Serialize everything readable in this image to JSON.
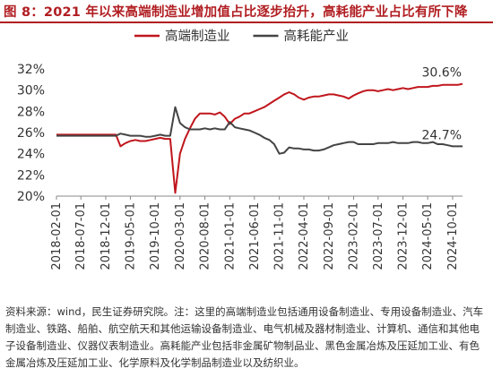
{
  "header": {
    "title": "图 8：2021 年以来高端制造业增加值占比逐步抬升，高耗能产业占比有所下降"
  },
  "footer": {
    "source_note": "资料来源：wind，民生证券研究院。注：这里的高端制造业包括通用设备制造业、专用设备制造业、汽车制造业、铁路、船舶、航空航天和其他运输设备制造业、电气机械及器材制造业、计算机、通信和其他电子设备制造业、仪器仪表制造业。高耗能产业包括非金属矿物制品业、黑色金属冶炼及压延加工业、有色金属冶炼及压延加工业、化学原料及化学制品制造业以及纺织业。"
  },
  "chart_data": {
    "type": "line",
    "title": "",
    "xlabel": "",
    "ylabel": "",
    "ylim": [
      20,
      32
    ],
    "yticks": [
      "20%",
      "22%",
      "24%",
      "26%",
      "28%",
      "30%",
      "32%"
    ],
    "xticks": [
      "2018-02-01",
      "2018-07-01",
      "2018-12-01",
      "2019-05-01",
      "2019-10-01",
      "2020-03-01",
      "2020-08-01",
      "2021-01-01",
      "2021-06-01",
      "2021-11-01",
      "2022-04-01",
      "2022-09-01",
      "2023-02-01",
      "2023-07-01",
      "2023-12-01",
      "2024-05-01",
      "2024-10-01"
    ],
    "x_range": [
      "2018-02-01",
      "2024-12-01"
    ],
    "grid": false,
    "legend_position": "top",
    "series": [
      {
        "name": "高端制造业",
        "color": "#c0161c",
        "end_label": "30.6%",
        "points": [
          [
            "2018-02-01",
            25.8
          ],
          [
            "2018-06-01",
            25.8
          ],
          [
            "2018-12-01",
            25.8
          ],
          [
            "2019-02-01",
            25.8
          ],
          [
            "2019-03-01",
            24.7
          ],
          [
            "2019-04-01",
            25.0
          ],
          [
            "2019-05-01",
            25.2
          ],
          [
            "2019-06-01",
            25.3
          ],
          [
            "2019-07-01",
            25.2
          ],
          [
            "2019-08-01",
            25.2
          ],
          [
            "2019-09-01",
            25.3
          ],
          [
            "2019-10-01",
            25.4
          ],
          [
            "2019-11-01",
            25.5
          ],
          [
            "2019-12-01",
            25.4
          ],
          [
            "2020-01-01",
            25.4
          ],
          [
            "2020-02-01",
            20.3
          ],
          [
            "2020-03-01",
            24.0
          ],
          [
            "2020-04-01",
            25.4
          ],
          [
            "2020-05-01",
            26.4
          ],
          [
            "2020-06-01",
            27.3
          ],
          [
            "2020-07-01",
            27.8
          ],
          [
            "2020-08-01",
            27.8
          ],
          [
            "2020-09-01",
            27.8
          ],
          [
            "2020-10-01",
            27.7
          ],
          [
            "2020-11-01",
            27.9
          ],
          [
            "2020-12-01",
            27.5
          ],
          [
            "2021-01-01",
            26.8
          ],
          [
            "2021-02-01",
            27.3
          ],
          [
            "2021-03-01",
            27.5
          ],
          [
            "2021-04-01",
            27.8
          ],
          [
            "2021-05-01",
            27.8
          ],
          [
            "2021-06-01",
            28.0
          ],
          [
            "2021-07-01",
            28.2
          ],
          [
            "2021-08-01",
            28.4
          ],
          [
            "2021-09-01",
            28.7
          ],
          [
            "2021-10-01",
            29.0
          ],
          [
            "2021-11-01",
            29.3
          ],
          [
            "2021-12-01",
            29.6
          ],
          [
            "2022-01-01",
            29.8
          ],
          [
            "2022-02-01",
            29.6
          ],
          [
            "2022-03-01",
            29.3
          ],
          [
            "2022-04-01",
            29.1
          ],
          [
            "2022-05-01",
            29.3
          ],
          [
            "2022-06-01",
            29.4
          ],
          [
            "2022-07-01",
            29.4
          ],
          [
            "2022-08-01",
            29.5
          ],
          [
            "2022-09-01",
            29.6
          ],
          [
            "2022-10-01",
            29.6
          ],
          [
            "2022-11-01",
            29.5
          ],
          [
            "2022-12-01",
            29.4
          ],
          [
            "2023-01-01",
            29.2
          ],
          [
            "2023-02-01",
            29.5
          ],
          [
            "2023-03-01",
            29.7
          ],
          [
            "2023-04-01",
            29.9
          ],
          [
            "2023-05-01",
            30.0
          ],
          [
            "2023-06-01",
            30.0
          ],
          [
            "2023-07-01",
            29.9
          ],
          [
            "2023-08-01",
            30.0
          ],
          [
            "2023-09-01",
            30.1
          ],
          [
            "2023-10-01",
            30.0
          ],
          [
            "2023-11-01",
            30.1
          ],
          [
            "2023-12-01",
            30.2
          ],
          [
            "2024-01-01",
            30.1
          ],
          [
            "2024-02-01",
            30.2
          ],
          [
            "2024-03-01",
            30.3
          ],
          [
            "2024-04-01",
            30.3
          ],
          [
            "2024-05-01",
            30.3
          ],
          [
            "2024-06-01",
            30.4
          ],
          [
            "2024-07-01",
            30.4
          ],
          [
            "2024-08-01",
            30.5
          ],
          [
            "2024-09-01",
            30.5
          ],
          [
            "2024-10-01",
            30.5
          ],
          [
            "2024-11-01",
            30.5
          ],
          [
            "2024-12-01",
            30.6
          ]
        ]
      },
      {
        "name": "高耗能产业",
        "color": "#444444",
        "end_label": "24.7%",
        "points": [
          [
            "2018-02-01",
            25.7
          ],
          [
            "2018-06-01",
            25.7
          ],
          [
            "2018-12-01",
            25.7
          ],
          [
            "2019-02-01",
            25.7
          ],
          [
            "2019-03-01",
            25.9
          ],
          [
            "2019-04-01",
            25.8
          ],
          [
            "2019-05-01",
            25.7
          ],
          [
            "2019-06-01",
            25.7
          ],
          [
            "2019-07-01",
            25.7
          ],
          [
            "2019-08-01",
            25.6
          ],
          [
            "2019-09-01",
            25.6
          ],
          [
            "2019-10-01",
            25.7
          ],
          [
            "2019-11-01",
            25.8
          ],
          [
            "2019-12-01",
            25.7
          ],
          [
            "2020-01-01",
            25.7
          ],
          [
            "2020-02-01",
            28.4
          ],
          [
            "2020-03-01",
            26.9
          ],
          [
            "2020-04-01",
            26.5
          ],
          [
            "2020-05-01",
            26.3
          ],
          [
            "2020-06-01",
            26.3
          ],
          [
            "2020-07-01",
            26.3
          ],
          [
            "2020-08-01",
            26.4
          ],
          [
            "2020-09-01",
            26.3
          ],
          [
            "2020-10-01",
            26.4
          ],
          [
            "2020-11-01",
            26.3
          ],
          [
            "2020-12-01",
            26.3
          ],
          [
            "2021-01-01",
            27.0
          ],
          [
            "2021-02-01",
            26.5
          ],
          [
            "2021-03-01",
            26.4
          ],
          [
            "2021-04-01",
            26.3
          ],
          [
            "2021-05-01",
            26.2
          ],
          [
            "2021-06-01",
            26.0
          ],
          [
            "2021-07-01",
            25.8
          ],
          [
            "2021-08-01",
            25.5
          ],
          [
            "2021-09-01",
            25.3
          ],
          [
            "2021-10-01",
            24.9
          ],
          [
            "2021-11-01",
            24.0
          ],
          [
            "2021-12-01",
            24.1
          ],
          [
            "2022-01-01",
            24.6
          ],
          [
            "2022-02-01",
            24.5
          ],
          [
            "2022-03-01",
            24.5
          ],
          [
            "2022-04-01",
            24.4
          ],
          [
            "2022-05-01",
            24.4
          ],
          [
            "2022-06-01",
            24.3
          ],
          [
            "2022-07-01",
            24.3
          ],
          [
            "2022-08-01",
            24.4
          ],
          [
            "2022-09-01",
            24.6
          ],
          [
            "2022-10-01",
            24.8
          ],
          [
            "2022-11-01",
            24.9
          ],
          [
            "2022-12-01",
            25.0
          ],
          [
            "2023-01-01",
            25.1
          ],
          [
            "2023-02-01",
            25.1
          ],
          [
            "2023-03-01",
            24.9
          ],
          [
            "2023-04-01",
            24.9
          ],
          [
            "2023-05-01",
            24.9
          ],
          [
            "2023-06-01",
            24.9
          ],
          [
            "2023-07-01",
            25.0
          ],
          [
            "2023-08-01",
            25.0
          ],
          [
            "2023-09-01",
            25.0
          ],
          [
            "2023-10-01",
            25.1
          ],
          [
            "2023-11-01",
            25.0
          ],
          [
            "2023-12-01",
            25.0
          ],
          [
            "2024-01-01",
            25.0
          ],
          [
            "2024-02-01",
            25.1
          ],
          [
            "2024-03-01",
            25.1
          ],
          [
            "2024-04-01",
            25.0
          ],
          [
            "2024-05-01",
            25.0
          ],
          [
            "2024-06-01",
            25.1
          ],
          [
            "2024-07-01",
            24.9
          ],
          [
            "2024-08-01",
            24.9
          ],
          [
            "2024-09-01",
            24.8
          ],
          [
            "2024-10-01",
            24.7
          ],
          [
            "2024-11-01",
            24.7
          ],
          [
            "2024-12-01",
            24.7
          ]
        ]
      }
    ]
  }
}
